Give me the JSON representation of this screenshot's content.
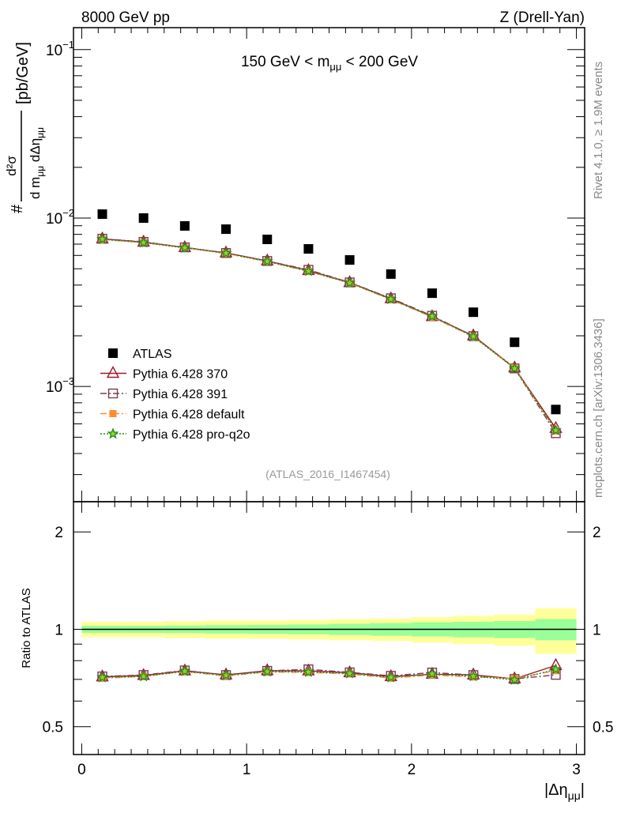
{
  "header": {
    "left": "8000 GeV pp",
    "right": "Z (Drell-Yan)"
  },
  "side": {
    "rivet": "Rivet 4.1.0, ≥ 1.9M events",
    "mcplots": "mcplots.cern.ch [arXiv:1306.3436]"
  },
  "chart_data": [
    {
      "type": "scatter",
      "title": "150 GeV < m_μμ < 200 GeV",
      "title_parts": {
        "pre": "150 GeV < m",
        "sub": "μμ",
        "post": " < 200 GeV"
      },
      "analysis_id": "(ATLAS_2016_I1467454)",
      "ylabel": {
        "hash": "#",
        "num": "d²σ",
        "den_a": "d m",
        "den_sub1": "μμ",
        "den_b": " dΔη",
        "den_sub2": "μμ",
        "unit": "[pb/GeV]"
      },
      "yscale": "log",
      "ylim": [
        0.000207,
        0.135
      ],
      "ytick_labels": [
        {
          "value": 0.1,
          "base": "10",
          "exp": "−1"
        },
        {
          "value": 0.01,
          "base": "10",
          "exp": "−2"
        },
        {
          "value": 0.001,
          "base": "10",
          "exp": "−3"
        }
      ],
      "xlim": [
        -0.05,
        3.05
      ],
      "x": [
        0.125,
        0.375,
        0.625,
        0.875,
        1.125,
        1.375,
        1.625,
        1.875,
        2.125,
        2.375,
        2.625,
        2.875
      ],
      "legend_position": "bottom-left",
      "series": [
        {
          "name": "ATLAS",
          "color": "#000000",
          "marker": "filled-square",
          "line": "none",
          "values": [
            0.01055,
            0.01,
            0.00898,
            0.00859,
            0.00747,
            0.00656,
            0.00564,
            0.00465,
            0.00358,
            0.00276,
            0.00183,
            0.00073
          ]
        },
        {
          "name": "Pythia 6.428 370",
          "color": "#a0182c",
          "marker": "open-triangle",
          "line": "solid",
          "values": [
            0.00752,
            0.0072,
            0.00668,
            0.00621,
            0.00557,
            0.00488,
            0.00414,
            0.00332,
            0.0026,
            0.002,
            0.00129,
            0.000564
          ]
        },
        {
          "name": "Pythia 6.428 391",
          "color": "#7a3b55",
          "marker": "open-square",
          "line": "dashdot",
          "values": [
            0.00754,
            0.00722,
            0.0067,
            0.0062,
            0.00556,
            0.00493,
            0.00415,
            0.00334,
            0.00263,
            0.00199,
            0.00128,
            0.000528
          ]
        },
        {
          "name": "Pythia 6.428 default",
          "color": "#ff8c33",
          "marker": "filled-square-small",
          "line": "dashdot",
          "values": [
            0.00744,
            0.00715,
            0.00665,
            0.00616,
            0.00551,
            0.00482,
            0.00411,
            0.00328,
            0.00258,
            0.00197,
            0.00129,
            0.000544
          ]
        },
        {
          "name": "Pythia 6.428 pro-q2o",
          "color": "#1a8c1a",
          "marker": "star",
          "line": "dotted",
          "values": [
            0.00749,
            0.00715,
            0.00666,
            0.00618,
            0.00553,
            0.00484,
            0.00412,
            0.0033,
            0.00261,
            0.00198,
            0.00128,
            0.000549
          ]
        }
      ]
    },
    {
      "type": "line",
      "ylabel": "Ratio to ATLAS",
      "xlabel": {
        "pre": "|Δη",
        "sub": "μμ",
        "post": "|"
      },
      "yscale": "log",
      "ylim": [
        0.41,
        2.48
      ],
      "ytick_labels": [
        {
          "value": 2,
          "label": "2"
        },
        {
          "value": 1,
          "label": "1"
        },
        {
          "value": 0.5,
          "label": "0.5"
        }
      ],
      "xtick_labels": [
        {
          "value": 0,
          "label": "0"
        },
        {
          "value": 1,
          "label": "1"
        },
        {
          "value": 2,
          "label": "2"
        },
        {
          "value": 3,
          "label": "3"
        }
      ],
      "bin_edges": [
        0,
        0.25,
        0.5,
        0.75,
        1.0,
        1.25,
        1.5,
        1.75,
        2.0,
        2.25,
        2.5,
        2.75,
        3.0
      ],
      "band_total": {
        "color": "#ffff99",
        "rel": [
          0.055,
          0.055,
          0.06,
          0.065,
          0.065,
          0.07,
          0.075,
          0.08,
          0.09,
          0.1,
          0.11,
          0.16
        ]
      },
      "band_stat": {
        "color": "#99ff99",
        "rel": [
          0.025,
          0.025,
          0.027,
          0.03,
          0.032,
          0.035,
          0.04,
          0.045,
          0.05,
          0.055,
          0.06,
          0.075
        ]
      },
      "series": [
        {
          "name": "Pythia 6.428 370",
          "values": [
            0.713,
            0.72,
            0.744,
            0.723,
            0.745,
            0.744,
            0.734,
            0.714,
            0.726,
            0.723,
            0.703,
            0.773
          ]
        },
        {
          "name": "Pythia 6.428 391",
          "values": [
            0.715,
            0.722,
            0.746,
            0.722,
            0.744,
            0.752,
            0.736,
            0.718,
            0.735,
            0.722,
            0.702,
            0.723
          ]
        },
        {
          "name": "Pythia 6.428 default",
          "values": [
            0.705,
            0.715,
            0.74,
            0.717,
            0.738,
            0.735,
            0.728,
            0.706,
            0.722,
            0.712,
            0.705,
            0.745
          ]
        },
        {
          "name": "Pythia 6.428 pro-q2o",
          "values": [
            0.71,
            0.715,
            0.742,
            0.72,
            0.74,
            0.738,
            0.73,
            0.71,
            0.728,
            0.716,
            0.698,
            0.752
          ]
        }
      ]
    }
  ]
}
